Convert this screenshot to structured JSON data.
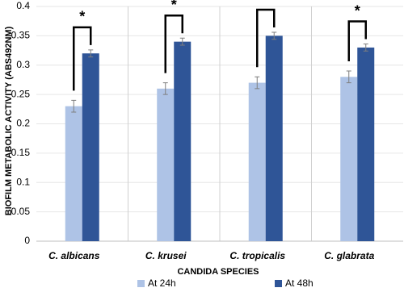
{
  "chart_data": {
    "type": "bar",
    "y_label": "BIOFILM METABOLIC ACTIVITY (ABS492NM)",
    "x_label": "CANDIDA SPECIES",
    "categories": [
      "C. albicans",
      "C. krusei",
      "C. tropicalis",
      "C. glabrata"
    ],
    "series": [
      {
        "name": "At 24h",
        "color": "#aec3e6",
        "values": [
          0.23,
          0.26,
          0.27,
          0.28
        ],
        "errors": [
          0.01,
          0.01,
          0.01,
          0.01
        ]
      },
      {
        "name": "At 48h",
        "color": "#2f5597",
        "values": [
          0.32,
          0.34,
          0.35,
          0.33
        ],
        "errors": [
          0.006,
          0.006,
          0.006,
          0.006
        ]
      }
    ],
    "annotations": [
      "*",
      "*",
      "*",
      "*"
    ],
    "ylim": [
      0,
      0.4
    ],
    "yticks": [
      0,
      0.05,
      0.1,
      0.15,
      0.2,
      0.25,
      0.3,
      0.35,
      0.4
    ],
    "grid": true
  }
}
